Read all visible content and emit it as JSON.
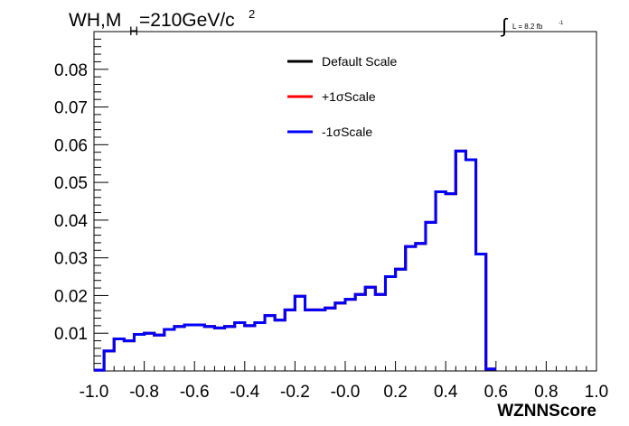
{
  "chart_data": {
    "type": "line",
    "title_parts": {
      "main": "WH,M",
      "sub": "H",
      "rest": "=210GeV/c",
      "sup": "2"
    },
    "lumi": {
      "integral": "∫",
      "text": "L = 8.2 fb",
      "sup": "-1"
    },
    "xlabel": "WZNNScore",
    "ylabel": "",
    "xlim": [
      -1.0,
      1.0
    ],
    "ylim": [
      0,
      0.09
    ],
    "x_ticks": [
      "-1.0",
      "-0.8",
      "-0.6",
      "-0.4",
      "-0.2",
      "-0.0",
      "0.2",
      "0.4",
      "0.6",
      "0.8",
      "1.0"
    ],
    "y_ticks": [
      "0.01",
      "0.02",
      "0.03",
      "0.04",
      "0.05",
      "0.06",
      "0.07",
      "0.08"
    ],
    "bin_edges_start": -1.0,
    "bin_width": 0.04,
    "legend": [
      {
        "label": "Default Scale",
        "color": "#000000"
      },
      {
        "label": "+1σScale",
        "color": "#ff0000"
      },
      {
        "label": "-1σScale",
        "color": "#0000ff"
      }
    ],
    "series": [
      {
        "name": "Default Scale",
        "color": "#000000",
        "values": [
          0.0002,
          0.0053,
          0.0085,
          0.008,
          0.0097,
          0.01,
          0.0095,
          0.011,
          0.0118,
          0.0122,
          0.0122,
          0.0118,
          0.0114,
          0.0118,
          0.0128,
          0.012,
          0.0128,
          0.0147,
          0.0135,
          0.0162,
          0.0198,
          0.0162,
          0.0162,
          0.0167,
          0.018,
          0.019,
          0.0203,
          0.0222,
          0.0203,
          0.025,
          0.027,
          0.033,
          0.0338,
          0.0394,
          0.0475,
          0.047,
          0.0583,
          0.056,
          0.031,
          0.0005
        ]
      },
      {
        "name": "+1σScale",
        "color": "#ff0000",
        "values": [
          0.0002,
          0.0053,
          0.0085,
          0.008,
          0.0097,
          0.01,
          0.0095,
          0.011,
          0.0118,
          0.0122,
          0.0122,
          0.0118,
          0.0114,
          0.0118,
          0.0128,
          0.012,
          0.0128,
          0.0147,
          0.0135,
          0.0162,
          0.0198,
          0.0162,
          0.0162,
          0.0167,
          0.018,
          0.019,
          0.0203,
          0.0222,
          0.0203,
          0.025,
          0.027,
          0.033,
          0.0338,
          0.0394,
          0.0475,
          0.047,
          0.0583,
          0.056,
          0.031,
          0.0005
        ]
      },
      {
        "name": "-1σScale",
        "color": "#0000ff",
        "values": [
          0.0002,
          0.0053,
          0.0085,
          0.008,
          0.0097,
          0.01,
          0.0095,
          0.011,
          0.0118,
          0.0122,
          0.0122,
          0.0118,
          0.0114,
          0.0118,
          0.0128,
          0.012,
          0.0128,
          0.0147,
          0.0135,
          0.0162,
          0.0198,
          0.0162,
          0.0162,
          0.0167,
          0.018,
          0.019,
          0.0203,
          0.0222,
          0.0203,
          0.025,
          0.027,
          0.033,
          0.0338,
          0.0394,
          0.0475,
          0.047,
          0.0583,
          0.056,
          0.031,
          0.0005
        ]
      }
    ]
  }
}
